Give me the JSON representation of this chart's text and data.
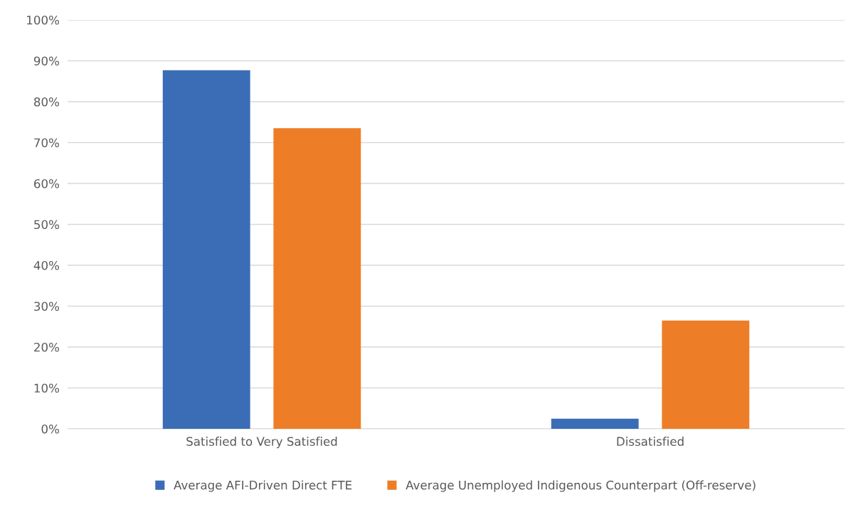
{
  "chart_data": {
    "type": "bar",
    "categories": [
      "Satisfied to Very Satisfied",
      "Dissatisfied"
    ],
    "series": [
      {
        "name": "Average AFI-Driven Direct FTE",
        "color": "#3a6db5",
        "values": [
          87.7,
          2.5
        ]
      },
      {
        "name": "Average Unemployed Indigenous Counterpart (Off-reserve)",
        "color": "#ed7d26",
        "values": [
          73.5,
          26.5
        ]
      }
    ],
    "ylim": [
      0,
      100
    ],
    "yticks": [
      {
        "value": 0,
        "label": "0%"
      },
      {
        "value": 10,
        "label": "10%"
      },
      {
        "value": 20,
        "label": "20%"
      },
      {
        "value": 30,
        "label": "30%"
      },
      {
        "value": 40,
        "label": "40%"
      },
      {
        "value": 50,
        "label": "50%"
      },
      {
        "value": 60,
        "label": "60%"
      },
      {
        "value": 70,
        "label": "70%"
      },
      {
        "value": 80,
        "label": "80%"
      },
      {
        "value": 90,
        "label": "90%"
      },
      {
        "value": 100,
        "label": "100%"
      }
    ],
    "grid": "y",
    "legend": "bottom"
  }
}
